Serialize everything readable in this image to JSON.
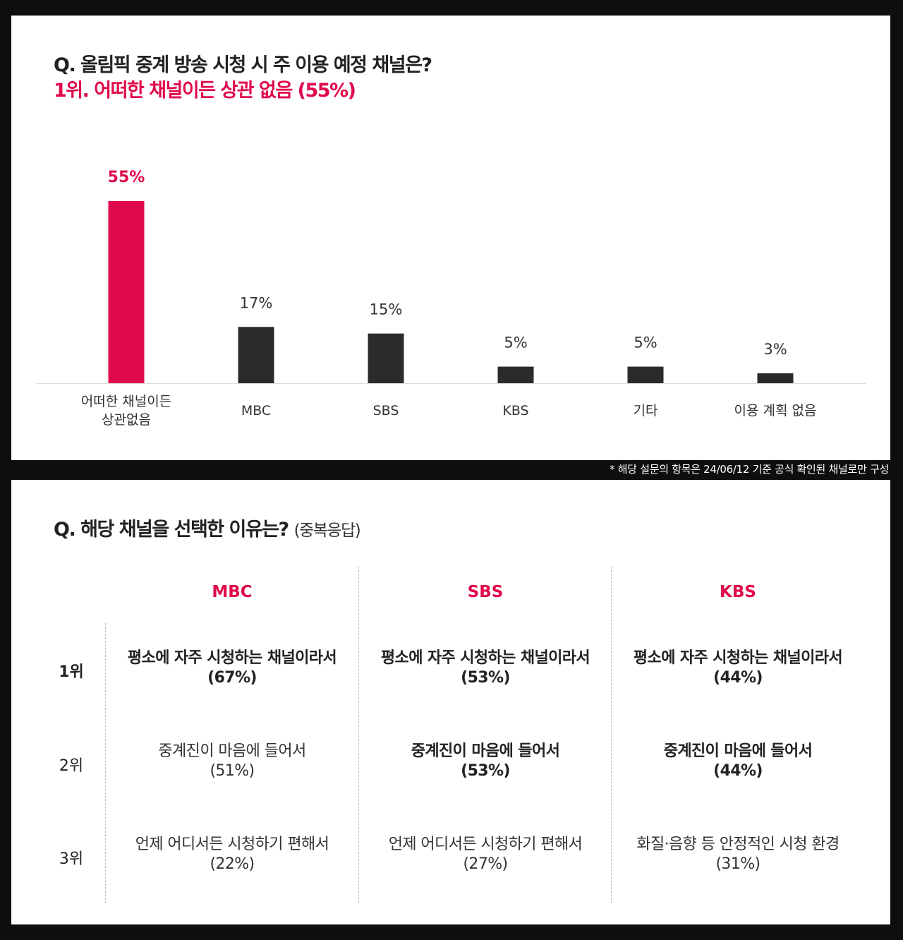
{
  "survey1": {
    "question": "Q. 올림픽 중계 방송 시청 시 주 이용 예정 채널은?",
    "highlight": "1위. 어떠한 채널이든 상관 없음 (55%)"
  },
  "chart_data": {
    "type": "bar",
    "categories": [
      "어떠한 채널이든\n상관없음",
      "MBC",
      "SBS",
      "KBS",
      "기타",
      "이용 계획 없음"
    ],
    "values": [
      55,
      17,
      15,
      5,
      5,
      3
    ],
    "value_labels": [
      "55%",
      "17%",
      "15%",
      "5%",
      "5%",
      "3%"
    ],
    "highlight_index": 0,
    "colors": {
      "highlight": "#e0094b",
      "default": "#2b2b2b"
    },
    "ylim": [
      0,
      55
    ],
    "grid": false
  },
  "footnote": "* 해당 설문의 항목은 24/06/12 기준 공식 확인된 채널로만 구성",
  "survey2": {
    "question": "Q. 해당 채널을 선택한 이유는?",
    "question_note": "(중복응답)",
    "columns": [
      "MBC",
      "SBS",
      "KBS"
    ],
    "ranks": [
      "1위",
      "2위",
      "3위"
    ],
    "cells": [
      [
        {
          "text": "평소에 자주 시청하는 채널이라서",
          "pct": "(67%)"
        },
        {
          "text": "평소에 자주 시청하는 채널이라서",
          "pct": "(53%)"
        },
        {
          "text": "평소에 자주 시청하는 채널이라서",
          "pct": "(44%)"
        }
      ],
      [
        {
          "text": "중계진이 마음에 들어서",
          "pct": "(51%)"
        },
        {
          "text": "중계진이 마음에 들어서",
          "pct": "(53%)"
        },
        {
          "text": "중계진이 마음에 들어서",
          "pct": "(44%)"
        }
      ],
      [
        {
          "text": "언제 어디서든 시청하기 편해서",
          "pct": "(22%)"
        },
        {
          "text": "언제 어디서든 시청하기 편해서",
          "pct": "(27%)"
        },
        {
          "text": "화질·음향 등 안정적인 시청 환경",
          "pct": "(31%)"
        }
      ]
    ],
    "accent_color": "#e0094b"
  }
}
